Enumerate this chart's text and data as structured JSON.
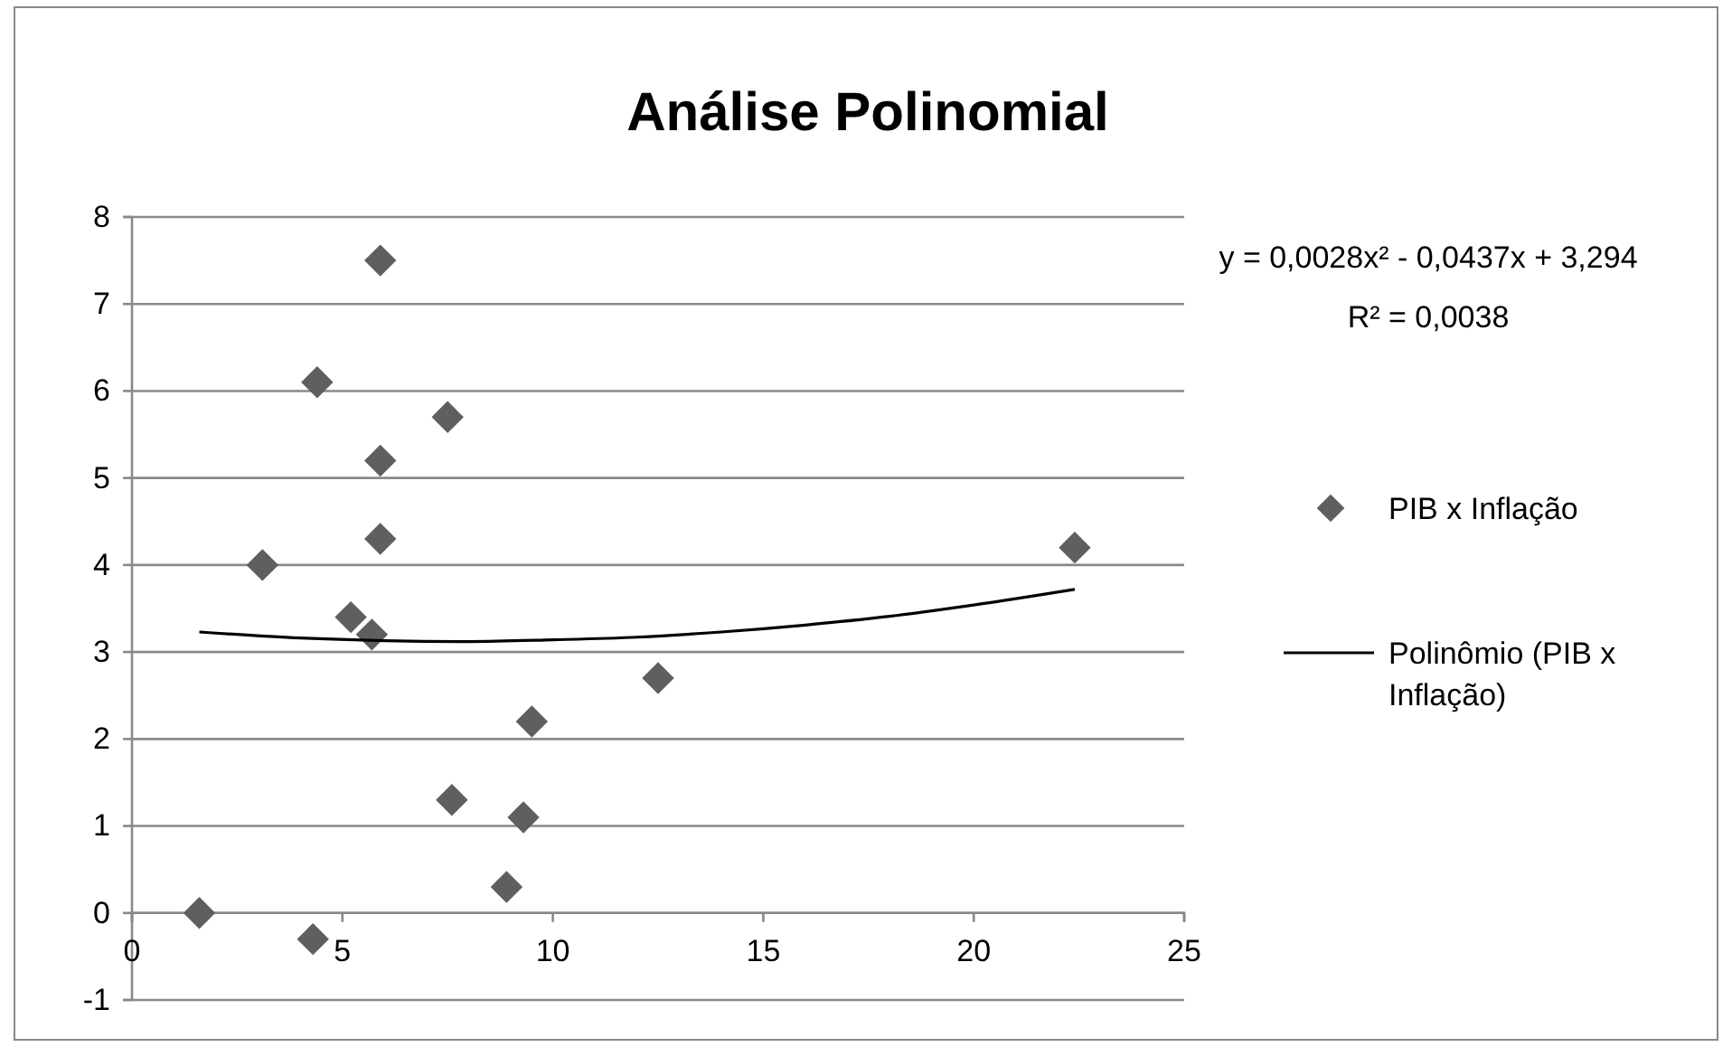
{
  "chart_data": {
    "type": "scatter",
    "title": "Análise Polinomial",
    "series": [
      {
        "name": "PIB x Inflação",
        "marker": "diamond",
        "color": "#5f5f5f",
        "x": [
          5.9,
          4.4,
          7.5,
          5.9,
          5.9,
          3.1,
          5.2,
          5.7,
          12.5,
          9.5,
          7.6,
          9.3,
          8.9,
          1.6,
          4.3,
          22.4
        ],
        "values": [
          7.5,
          6.1,
          5.7,
          5.2,
          4.3,
          4.0,
          3.4,
          3.2,
          2.7,
          2.2,
          1.3,
          1.1,
          0.3,
          0.0,
          -0.3,
          4.2
        ]
      },
      {
        "name": "Polinômio (PIB x Inflação)",
        "type": "line",
        "marker": "none",
        "color": "#000000",
        "x": [
          1.6,
          4,
          6,
          8,
          10,
          12,
          14,
          16,
          18,
          20,
          22.4
        ],
        "values": [
          3.23,
          3.16,
          3.13,
          3.12,
          3.14,
          3.17,
          3.23,
          3.31,
          3.41,
          3.54,
          3.72
        ]
      }
    ],
    "xlim": [
      0,
      25
    ],
    "xticks": [
      0,
      5,
      10,
      15,
      20,
      25
    ],
    "ylim": [
      -1,
      8
    ],
    "yticks": [
      -1,
      0,
      1,
      2,
      3,
      4,
      5,
      6,
      7,
      8
    ],
    "grid": "y",
    "legend": "right",
    "line_style": "solid",
    "annotations": [
      "y = 0,0028x² - 0,0437x + 3,294",
      "R² = 0,0038"
    ]
  }
}
